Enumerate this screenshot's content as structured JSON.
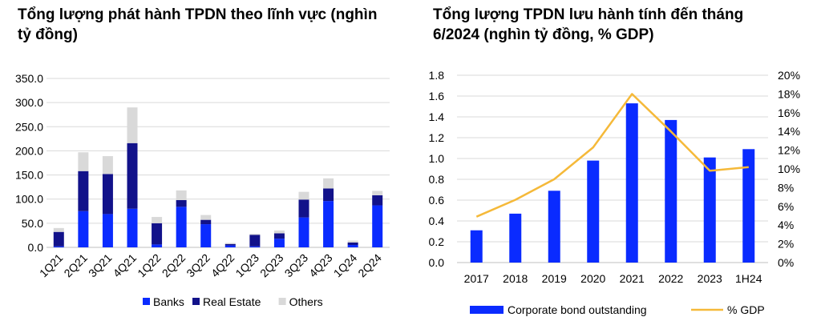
{
  "chart_data": [
    {
      "type": "bar",
      "stacked": true,
      "title": "Tổng lượng phát hành TPDN theo lĩnh vực (nghìn tỷ đồng)",
      "categories": [
        "1Q21",
        "2Q21",
        "3Q21",
        "4Q21",
        "1Q22",
        "2Q22",
        "3Q22",
        "4Q22",
        "1Q23",
        "2Q23",
        "3Q23",
        "4Q23",
        "1Q24",
        "2Q24"
      ],
      "series": [
        {
          "name": "Banks",
          "values": [
            2,
            75,
            69,
            80,
            6,
            84,
            48,
            4,
            2,
            18,
            62,
            96,
            5,
            87
          ]
        },
        {
          "name": "Real Estate",
          "values": [
            30,
            83,
            83,
            136,
            44,
            14,
            9,
            3,
            24,
            11,
            37,
            26,
            5,
            21
          ]
        },
        {
          "name": "Others",
          "values": [
            8,
            39,
            37,
            74,
            13,
            20,
            10,
            2,
            2,
            6,
            16,
            21,
            4,
            9
          ]
        }
      ],
      "yticks": [
        "0.0",
        "50.0",
        "100.0",
        "150.0",
        "200.0",
        "250.0",
        "300.0",
        "350.0"
      ],
      "ylim": [
        0,
        350
      ],
      "grid": true,
      "legend": "bottom",
      "colors": {
        "Banks": "#0a2bff",
        "Real Estate": "#12128a",
        "Others": "#d9d9d9"
      }
    },
    {
      "type": "bar+line",
      "title": "Tổng lượng TPDN lưu hành tính đến tháng 6/2024 (nghìn tỷ đồng, % GDP)",
      "categories": [
        "2017",
        "2018",
        "2019",
        "2020",
        "2021",
        "2022",
        "2023",
        "1H24"
      ],
      "series": [
        {
          "name": "Corporate bond outstanding",
          "type": "bar",
          "axis": "left",
          "values": [
            0.31,
            0.47,
            0.69,
            0.98,
            1.53,
            1.37,
            1.01,
            1.09
          ]
        },
        {
          "name": "% GDP",
          "type": "line",
          "axis": "right",
          "values": [
            4.9,
            6.7,
            8.9,
            12.3,
            18.0,
            14.0,
            9.8,
            10.2
          ]
        }
      ],
      "yticks_left": [
        "0.0",
        "0.2",
        "0.4",
        "0.6",
        "0.8",
        "1.0",
        "1.2",
        "1.4",
        "1.6",
        "1.8"
      ],
      "yticks_right": [
        "0%",
        "2%",
        "4%",
        "6%",
        "8%",
        "10%",
        "12%",
        "14%",
        "16%",
        "18%",
        "20%"
      ],
      "ylim_left": [
        0,
        1.8
      ],
      "ylim_right": [
        0,
        20
      ],
      "grid": true,
      "legend": "bottom",
      "colors": {
        "bar": "#0a2bff",
        "line": "#f5b939"
      }
    }
  ]
}
